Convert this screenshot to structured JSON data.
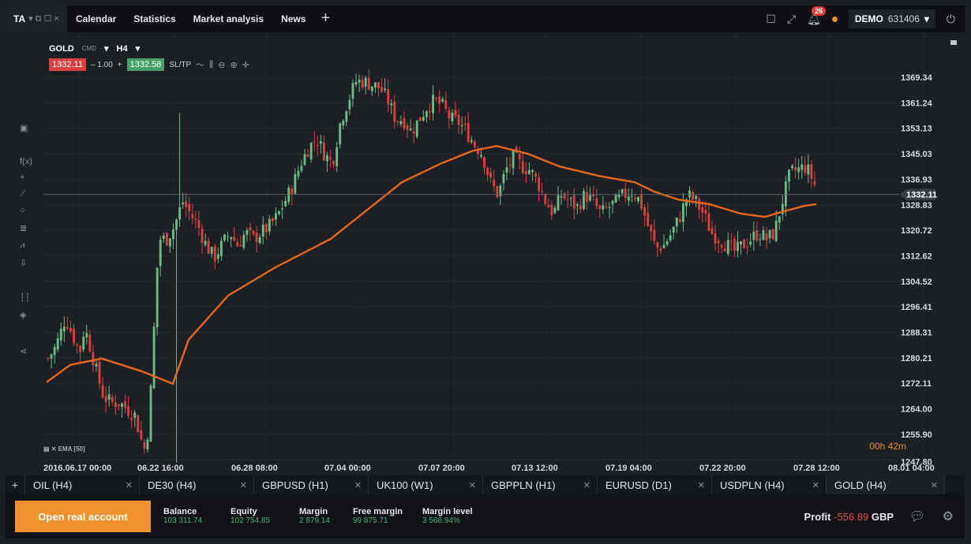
{
  "nav": {
    "ta_label": "TA",
    "ta_icons": "▾ ⧉ ☐ ×",
    "tabs": [
      "Calendar",
      "Statistics",
      "Market analysis",
      "News"
    ],
    "plus": "+"
  },
  "header_right": {
    "notifications": "26",
    "account_type": "DEMO",
    "account_number": "631406"
  },
  "chart": {
    "symbol": "GOLD",
    "symbol_sub": "CMD",
    "timeframe": "H4",
    "sell_price": "1332.11",
    "spread": "– 1.00",
    "plus": "+",
    "buy_price": "1332.58",
    "sltp": "SL/TP",
    "ema_label": "EMA [50]",
    "timer": "00h 42m",
    "current_price": "1332.11",
    "y_labels": [
      "1369.34",
      "1361.24",
      "1353.13",
      "1345.03",
      "1336.93",
      "1328.83",
      "1320.72",
      "1312.62",
      "1304.52",
      "1296.41",
      "1288.31",
      "1280.21",
      "1272.11",
      "1264.00",
      "1255.90",
      "1247.80"
    ],
    "x_labels": [
      "2016.06.17 00:00",
      "06.22 16:00",
      "06.28 08:00",
      "07.04 00:00",
      "07.07 20:00",
      "07.13 12:00",
      "07.19 04:00",
      "07.22 20:00",
      "07.28 12:00",
      "08.01 04:00"
    ],
    "colors": {
      "up": "#6dbb86",
      "down": "#d94141",
      "ema": "#e8671c"
    }
  },
  "instrument_tabs": [
    {
      "label": "OIL (H4)"
    },
    {
      "label": "DE30 (H4)"
    },
    {
      "label": "GBPUSD (H1)"
    },
    {
      "label": "UK100 (W1)"
    },
    {
      "label": "GBPPLN (H1)"
    },
    {
      "label": "EURUSD (D1)"
    },
    {
      "label": "USDPLN (H4)"
    },
    {
      "label": "GOLD (H4)"
    }
  ],
  "bottom": {
    "open_account": "Open real account",
    "balance_label": "Balance",
    "balance": "103 311.74",
    "equity_label": "Equity",
    "equity": "102 754.85",
    "margin_label": "Margin",
    "margin": "2 879.14",
    "free_margin_label": "Free margin",
    "free_margin": "99 875.71",
    "margin_level_label": "Margin level",
    "margin_level": "3 568.94%",
    "profit_label": "Profit",
    "profit": "-556.89",
    "currency": "GBP"
  }
}
